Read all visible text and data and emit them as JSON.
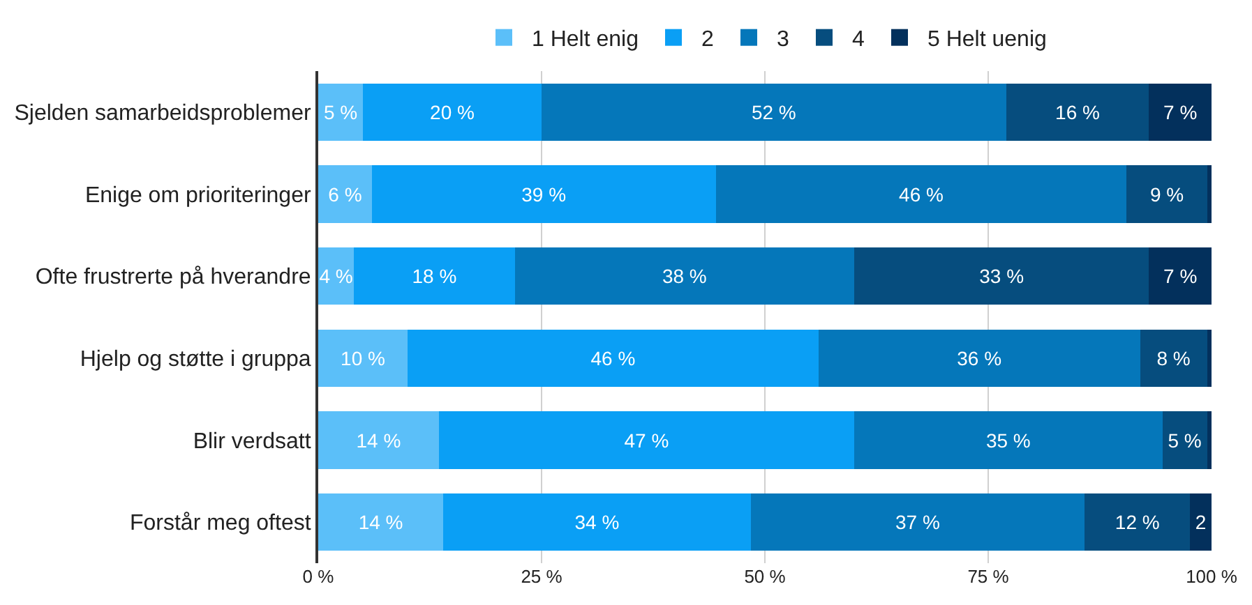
{
  "chart_data": {
    "type": "bar",
    "orientation": "horizontal",
    "stacked": true,
    "categories": [
      "Sjelden samarbeidsproblemer",
      "Enige om prioriteringer",
      "Ofte frustrerte på hverandre",
      "Hjelp og støtte i gruppa",
      "Blir verdsatt",
      "Forstår meg oftest"
    ],
    "series": [
      {
        "name": "1 Helt enig",
        "color": "#5bbff9",
        "values": [
          5,
          6,
          4,
          10,
          13.5,
          14
        ],
        "value_labels": [
          "5 %",
          "6 %",
          "4 %",
          "10 %",
          "14 %",
          "14 %"
        ]
      },
      {
        "name": "2",
        "color": "#0a9ff5",
        "values": [
          20,
          38.5,
          18,
          46,
          46.5,
          34.4
        ],
        "value_labels": [
          "20 %",
          "39 %",
          "18 %",
          "46 %",
          "47 %",
          "34 %"
        ]
      },
      {
        "name": "3",
        "color": "#0577ba",
        "values": [
          52,
          46,
          38,
          36,
          34.5,
          37.4
        ],
        "value_labels": [
          "52 %",
          "46 %",
          "38 %",
          "36 %",
          "35 %",
          "37 %"
        ]
      },
      {
        "name": "4",
        "color": "#064d7e",
        "values": [
          16,
          9,
          33,
          7.5,
          5,
          11.8
        ],
        "value_labels": [
          "16 %",
          "9 %",
          "33 %",
          "8 %",
          "5 %",
          "12 %"
        ]
      },
      {
        "name": "5 Helt uenig",
        "color": "#03305c",
        "values": [
          7,
          0.5,
          7,
          0.5,
          0.5,
          2.4
        ],
        "value_labels": [
          "7 %",
          null,
          "7 %",
          null,
          null,
          "2"
        ]
      }
    ],
    "xlim": [
      0,
      100
    ],
    "xticks": [
      {
        "value": 0,
        "label": "0 %"
      },
      {
        "value": 25,
        "label": "25 %"
      },
      {
        "value": 50,
        "label": "50 %"
      },
      {
        "value": 75,
        "label": "75 %"
      },
      {
        "value": 100,
        "label": "100 %"
      }
    ],
    "grid": "x",
    "legend": "top"
  }
}
